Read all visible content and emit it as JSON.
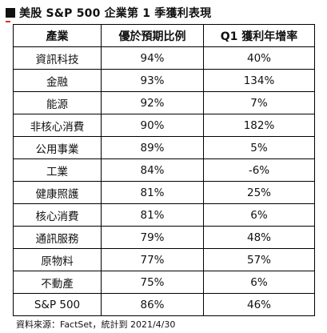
{
  "title": "美股 S&P 500 企業第 1 季獲利表現",
  "table": {
    "headers": [
      "產業",
      "優於預期比例",
      "Q1 獲利年增率"
    ],
    "rows": [
      [
        "資訊科技",
        "94%",
        "40%"
      ],
      [
        "金融",
        "93%",
        "134%"
      ],
      [
        "能源",
        "92%",
        "7%"
      ],
      [
        "非核心消費",
        "90%",
        "182%"
      ],
      [
        "公用事業",
        "89%",
        "5%"
      ],
      [
        "工業",
        "84%",
        "-6%"
      ],
      [
        "健康照護",
        "81%",
        "25%"
      ],
      [
        "核心消費",
        "81%",
        "6%"
      ],
      [
        "通訊服務",
        "79%",
        "48%"
      ],
      [
        "原物料",
        "77%",
        "57%"
      ],
      [
        "不動產",
        "75%",
        "6%"
      ],
      [
        "S&P 500",
        "86%",
        "46%"
      ]
    ]
  },
  "source": "資料來源：FactSet，統計到 2021/4/30"
}
